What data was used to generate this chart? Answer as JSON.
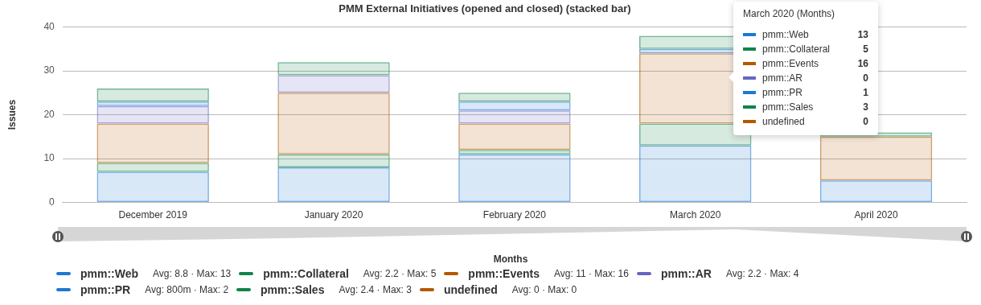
{
  "chart_data": {
    "type": "bar",
    "title": "PMM External Initiatives (opened and closed) (stacked bar)",
    "xlabel": "Months",
    "ylabel": "Issues",
    "stacked": true,
    "grid": "y",
    "legend": "bottom",
    "categories": [
      "December 2019",
      "January 2020",
      "February 2020",
      "March 2020",
      "April 2020"
    ],
    "ylim": [
      0,
      40
    ],
    "yticks": [
      0,
      10,
      20,
      30,
      40
    ],
    "series": [
      {
        "name": "pmm::Web",
        "color": "#1f78d1",
        "values": [
          7,
          8,
          11,
          13,
          5
        ]
      },
      {
        "name": "pmm::Collateral",
        "color": "#108548",
        "values": [
          2,
          3,
          1,
          5,
          0
        ]
      },
      {
        "name": "pmm::Events",
        "color": "#b35900",
        "values": [
          9,
          14,
          6,
          16,
          10
        ]
      },
      {
        "name": "pmm::AR",
        "color": "#6666c4",
        "values": [
          4,
          4,
          3,
          0,
          0
        ]
      },
      {
        "name": "pmm::PR",
        "color": "#1f78d1",
        "values": [
          1,
          0,
          2,
          1,
          0
        ]
      },
      {
        "name": "pmm::Sales",
        "color": "#108548",
        "values": [
          3,
          3,
          2,
          3,
          1
        ]
      },
      {
        "name": "undefined",
        "color": "#b35900",
        "values": [
          0,
          0,
          0,
          0,
          0
        ]
      }
    ],
    "annotations": [
      "March 2020 (Months)",
      "Avg: 8.8 · Max: 13",
      "Avg: 2.2 · Max: 5",
      "Avg: 11 · Max: 16",
      "Avg: 2.2 · Max: 4",
      "Avg: 800m · Max: 2",
      "Avg: 2.4 · Max: 3",
      "Avg: 0 · Max: 0",
      "13",
      "5",
      "16",
      "0",
      "1",
      "3",
      "0"
    ]
  }
}
